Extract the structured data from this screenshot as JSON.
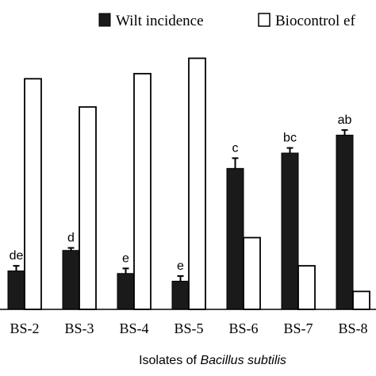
{
  "chart_data": {
    "type": "bar",
    "categories": [
      "BS-2",
      "BS-3",
      "BS-4",
      "BS-5",
      "BS-6",
      "BS-7",
      "BS-8"
    ],
    "series": [
      {
        "name": "Wilt incidence",
        "values": [
          15,
          23,
          14,
          11,
          55,
          61,
          68
        ],
        "errors": [
          2,
          1,
          2,
          2,
          4,
          2,
          2
        ],
        "color": "#1a1a1a"
      },
      {
        "name": "Biocontrol ef",
        "values": [
          90,
          79,
          92,
          98,
          28,
          17,
          7
        ],
        "color": "#ffffff"
      }
    ],
    "significance_labels": [
      "de",
      "d",
      "e",
      "e",
      "c",
      "bc",
      "ab"
    ],
    "xlabel_prefix": "Isolates of ",
    "xlabel_italic": "Bacillus subtilis",
    "ylim": [
      0,
      100
    ],
    "legend_position": "top",
    "grid": false
  }
}
